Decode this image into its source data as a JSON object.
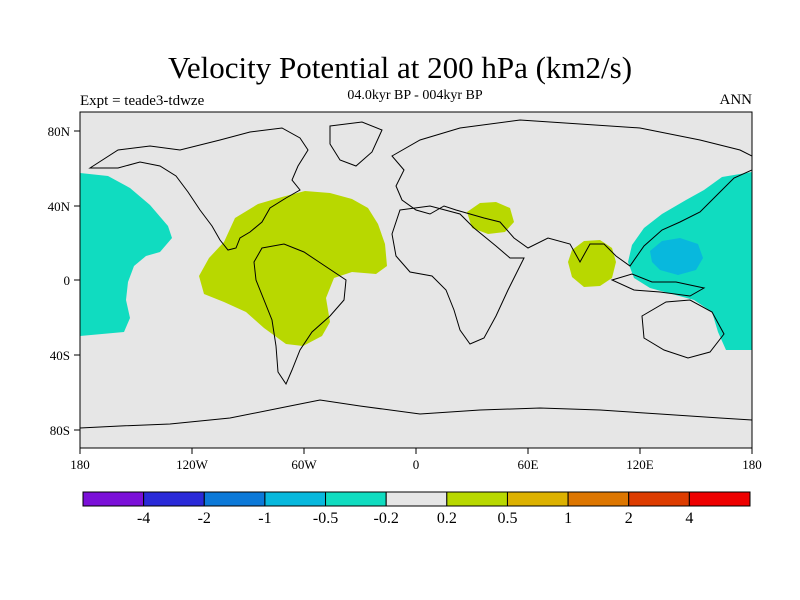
{
  "header": {
    "title": "Velocity Potential at 200 hPa (km2/s)",
    "experiment": "Expt = teade3-tdwze",
    "period": "04.0kyr BP - 004kyr BP",
    "season": "ANN"
  },
  "axes": {
    "lat_labels": [
      "80N",
      "40N",
      "0",
      "40S",
      "80S"
    ],
    "lon_labels": [
      "180",
      "120W",
      "60W",
      "0",
      "60E",
      "120E",
      "180"
    ]
  },
  "colorbar": {
    "colors": [
      "#7b10d8",
      "#2a2ad8",
      "#0c79d8",
      "#08b8dd",
      "#10dcc0",
      "#e6e6e6",
      "#b8d800",
      "#dcb100",
      "#dd7600",
      "#dd3c00",
      "#ee0000"
    ],
    "labels": [
      "-4",
      "-2",
      "-1",
      "-0.5",
      "-0.2",
      "0.2",
      "0.5",
      "1",
      "2",
      "4"
    ]
  },
  "map": {
    "background": "#e6e6e6",
    "regions": [
      {
        "name": "central-pacific-east-negative",
        "level": "-0.5 to -0.2"
      },
      {
        "name": "atlantic-americas-positive",
        "level": "0.2 to 0.5"
      },
      {
        "name": "middle-east-positive",
        "level": "0.2 to 0.5"
      },
      {
        "name": "bay-of-bengal-positive",
        "level": "0.2 to 0.5"
      },
      {
        "name": "western-pacific-negative",
        "level": "-0.5 to -0.2"
      },
      {
        "name": "western-pacific-core-negative",
        "level": "-1 to -0.5"
      }
    ]
  }
}
